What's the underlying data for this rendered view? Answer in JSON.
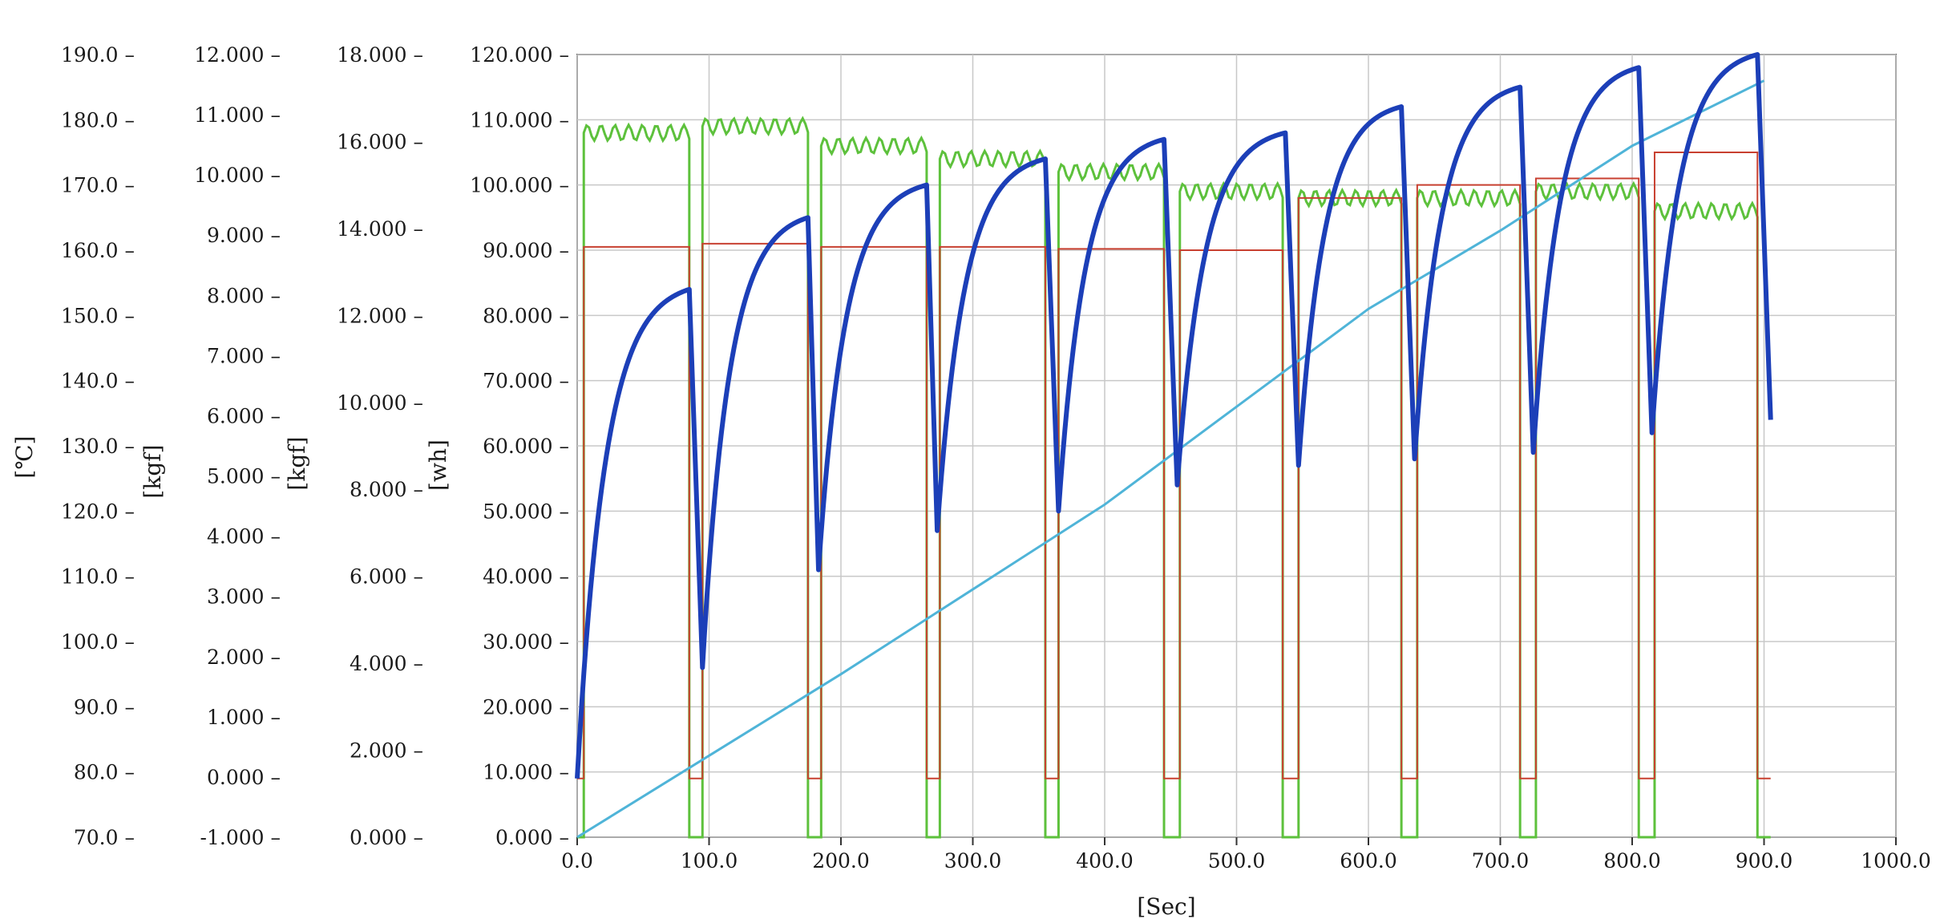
{
  "chart_data": {
    "type": "line",
    "xlabel": "[Sec]",
    "xlim": [
      0,
      1000
    ],
    "x_ticks": [
      "0.0",
      "100.0",
      "200.0",
      "300.0",
      "400.0",
      "500.0",
      "600.0",
      "700.0",
      "800.0",
      "900.0",
      "1000.0"
    ],
    "grid": true,
    "y_axes": [
      {
        "label": "[℃]",
        "range": [
          70,
          190
        ],
        "ticks": [
          "190.0",
          "180.0",
          "170.0",
          "160.0",
          "150.0",
          "140.0",
          "130.0",
          "120.0",
          "110.0",
          "100.0",
          "90.0",
          "80.0",
          "70.0"
        ]
      },
      {
        "label": "[kgf]",
        "range": [
          -1,
          12
        ],
        "ticks": [
          "12.000",
          "11.000",
          "10.000",
          "9.000",
          "8.000",
          "7.000",
          "6.000",
          "5.000",
          "4.000",
          "3.000",
          "2.000",
          "1.000",
          "0.000",
          "-1.000"
        ]
      },
      {
        "label": "[kgf]",
        "range": [
          0,
          18
        ],
        "ticks": [
          "18.000",
          "16.000",
          "14.000",
          "12.000",
          "10.000",
          "8.000",
          "6.000",
          "4.000",
          "2.000",
          "0.000"
        ]
      },
      {
        "label": "[wh]",
        "range": [
          0,
          120
        ],
        "ticks": [
          "120.000",
          "110.000",
          "100.000",
          "90.000",
          "80.000",
          "70.000",
          "60.000",
          "50.000",
          "40.000",
          "30.000",
          "20.000",
          "10.000",
          "0.000"
        ]
      }
    ],
    "series": [
      {
        "color": "#1c3fb8",
        "unit_axis": "[wh]",
        "cycles": [
          {
            "start": 0,
            "end": 85,
            "start_y": 9,
            "peak": 84
          },
          {
            "start": 95,
            "end": 175,
            "start_y": 26,
            "peak": 95
          },
          {
            "start": 183,
            "end": 265,
            "start_y": 41,
            "peak": 100
          },
          {
            "start": 273,
            "end": 355,
            "start_y": 47,
            "peak": 104
          },
          {
            "start": 365,
            "end": 445,
            "start_y": 50,
            "peak": 107
          },
          {
            "start": 455,
            "end": 537,
            "start_y": 54,
            "peak": 108
          },
          {
            "start": 547,
            "end": 625,
            "start_y": 57,
            "peak": 112
          },
          {
            "start": 635,
            "end": 715,
            "start_y": 58,
            "peak": 115
          },
          {
            "start": 725,
            "end": 805,
            "start_y": 59,
            "peak": 118
          },
          {
            "start": 815,
            "end": 895,
            "start_y": 62,
            "peak": 120
          }
        ],
        "final_drop_to": [
          905,
          64
        ]
      },
      {
        "color": "#5dc13c",
        "unit_axis": "[wh]",
        "on_segments": [
          {
            "start": 5,
            "end": 85,
            "level": 108
          },
          {
            "start": 95,
            "end": 175,
            "level": 109
          },
          {
            "start": 185,
            "end": 265,
            "level": 106
          },
          {
            "start": 275,
            "end": 355,
            "level": 104
          },
          {
            "start": 365,
            "end": 445,
            "level": 102
          },
          {
            "start": 457,
            "end": 535,
            "level": 99
          },
          {
            "start": 547,
            "end": 625,
            "level": 98
          },
          {
            "start": 637,
            "end": 715,
            "level": 98
          },
          {
            "start": 727,
            "end": 805,
            "level": 99
          },
          {
            "start": 817,
            "end": 895,
            "level": 96
          }
        ],
        "off_level": 0
      },
      {
        "color": "#c84030",
        "unit_axis": "[wh]",
        "on_segments": [
          {
            "start": 5,
            "end": 85,
            "level": 90.5
          },
          {
            "start": 95,
            "end": 175,
            "level": 91
          },
          {
            "start": 185,
            "end": 265,
            "level": 90.5
          },
          {
            "start": 275,
            "end": 355,
            "level": 90.5
          },
          {
            "start": 365,
            "end": 445,
            "level": 90.2
          },
          {
            "start": 457,
            "end": 535,
            "level": 90
          },
          {
            "start": 547,
            "end": 625,
            "level": 98
          },
          {
            "start": 637,
            "end": 715,
            "level": 100
          },
          {
            "start": 727,
            "end": 805,
            "level": 101
          },
          {
            "start": 817,
            "end": 895,
            "level": 105
          }
        ],
        "off_level": 9
      },
      {
        "color": "#4fb4d8",
        "unit_axis": "[wh]",
        "x": [
          0,
          100,
          200,
          300,
          400,
          500,
          600,
          700,
          800,
          900
        ],
        "y": [
          0,
          12.5,
          25,
          38,
          51,
          66,
          81,
          93,
          106,
          116
        ]
      }
    ]
  }
}
